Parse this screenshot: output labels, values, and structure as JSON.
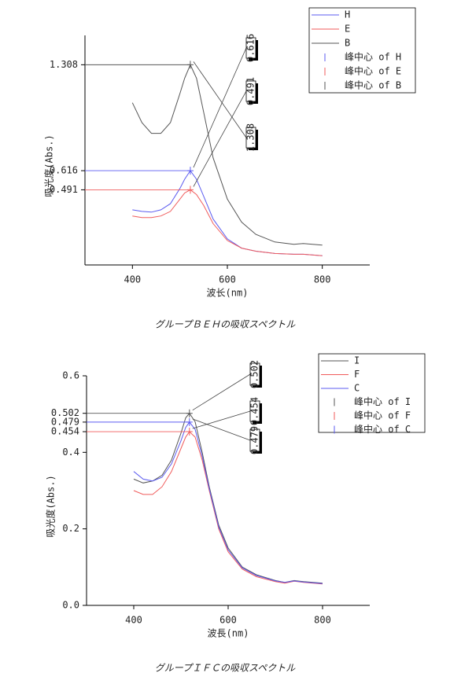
{
  "chart_data": [
    {
      "type": "line",
      "caption": "グループＢＥＨの吸収スペクトル",
      "xlabel": "波长(nm)",
      "ylabel": "吸光度(Abs.)",
      "xlim": [
        300,
        900
      ],
      "xticks": [
        400,
        600,
        800
      ],
      "ylim": [
        0,
        1.5
      ],
      "yticks": [
        1.308,
        0.616,
        0.491
      ],
      "legend": "upper right",
      "x": [
        400,
        420,
        440,
        460,
        480,
        500,
        510,
        522,
        535,
        550,
        570,
        600,
        630,
        660,
        700,
        740,
        760,
        800
      ],
      "series": [
        {
          "name": "H",
          "color": "#5b5bf0",
          "values": [
            0.36,
            0.35,
            0.345,
            0.36,
            0.4,
            0.5,
            0.56,
            0.616,
            0.56,
            0.45,
            0.3,
            0.17,
            0.11,
            0.09,
            0.075,
            0.07,
            0.07,
            0.06
          ]
        },
        {
          "name": "E",
          "color": "#f05b5b",
          "values": [
            0.32,
            0.31,
            0.31,
            0.32,
            0.35,
            0.43,
            0.47,
            0.491,
            0.46,
            0.39,
            0.27,
            0.16,
            0.11,
            0.09,
            0.075,
            0.07,
            0.07,
            0.06
          ]
        },
        {
          "name": "B",
          "color": "#555555",
          "values": [
            1.06,
            0.93,
            0.86,
            0.86,
            0.93,
            1.12,
            1.22,
            1.308,
            1.22,
            1.0,
            0.7,
            0.43,
            0.28,
            0.2,
            0.15,
            0.135,
            0.14,
            0.13
          ]
        },
        {
          "name": "峰中心 of H",
          "type": "peak",
          "color": "#5b5bf0",
          "x": [
            522
          ],
          "values": [
            0.616
          ]
        },
        {
          "name": "峰中心 of E",
          "type": "peak",
          "color": "#f05b5b",
          "x": [
            522
          ],
          "values": [
            0.491
          ]
        },
        {
          "name": "峰中心 of B",
          "type": "peak",
          "color": "#555555",
          "x": [
            522
          ],
          "values": [
            1.308
          ]
        }
      ]
    },
    {
      "type": "line",
      "caption": "グループＩＦＣの吸収スペクトル",
      "xlabel": "波長(nm)",
      "ylabel": "吸光度(Abs.)",
      "xlim": [
        300,
        900
      ],
      "xticks": [
        400,
        600,
        800
      ],
      "ylim": [
        0,
        0.6
      ],
      "yticks": [
        {
          "value": 0,
          "label": "0.0"
        },
        0.2,
        0.4,
        0.6,
        0.502,
        0.479,
        0.454
      ],
      "legend": "upper right",
      "x": [
        400,
        420,
        440,
        460,
        480,
        500,
        510,
        518,
        530,
        545,
        560,
        580,
        600,
        630,
        660,
        700,
        720,
        740,
        760,
        800
      ],
      "series": [
        {
          "name": "I",
          "color": "#555555",
          "values": [
            0.33,
            0.32,
            0.325,
            0.34,
            0.38,
            0.45,
            0.49,
            0.502,
            0.48,
            0.4,
            0.31,
            0.21,
            0.15,
            0.1,
            0.08,
            0.065,
            0.06,
            0.065,
            0.062,
            0.058
          ]
        },
        {
          "name": "F",
          "color": "#f05b5b",
          "values": [
            0.3,
            0.29,
            0.29,
            0.31,
            0.35,
            0.41,
            0.44,
            0.454,
            0.44,
            0.38,
            0.3,
            0.2,
            0.14,
            0.095,
            0.075,
            0.062,
            0.058,
            0.063,
            0.06,
            0.056
          ]
        },
        {
          "name": "C",
          "color": "#5b5bf0",
          "values": [
            0.35,
            0.33,
            0.325,
            0.335,
            0.37,
            0.43,
            0.465,
            0.479,
            0.46,
            0.39,
            0.305,
            0.205,
            0.145,
            0.098,
            0.078,
            0.064,
            0.06,
            0.064,
            0.061,
            0.057
          ]
        },
        {
          "name": "峰中心 of I",
          "type": "peak",
          "color": "#555555",
          "x": [
            518
          ],
          "values": [
            0.502
          ]
        },
        {
          "name": "峰中心 of F",
          "type": "peak",
          "color": "#f05b5b",
          "x": [
            518
          ],
          "values": [
            0.454
          ]
        },
        {
          "name": "峰中心 of C",
          "type": "peak",
          "color": "#5b5bf0",
          "x": [
            518
          ],
          "values": [
            0.479
          ]
        }
      ]
    }
  ]
}
